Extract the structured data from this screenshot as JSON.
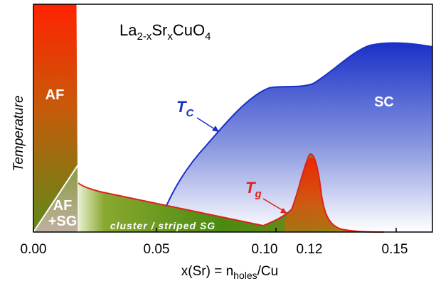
{
  "title": {
    "base1": "La",
    "sub1": "2-x",
    "base2": "Sr",
    "sub2": "x",
    "base3": "CuO",
    "sub3": "4"
  },
  "axes": {
    "ylabel": "Temperature",
    "xlabel": {
      "pre": "x(Sr) = n",
      "sub": "holes",
      "post": "/Cu"
    },
    "xticks": [
      {
        "label": "0.00",
        "x": 0.0
      },
      {
        "label": "0.05",
        "x": 0.05
      },
      {
        "label": "0.10",
        "x": 0.1
      },
      {
        "label": "0.12",
        "x": 0.12,
        "color": "#e0201a"
      },
      {
        "label": "0.15",
        "x": 0.15
      }
    ]
  },
  "regions": {
    "af": "AF",
    "af_sg_line1": "AF",
    "af_sg_line2": "+SG",
    "sc": "SC",
    "cluster": "cluster / striped SG"
  },
  "labels": {
    "tc": {
      "base": "T",
      "sub": "C",
      "color": "#1a30c8"
    },
    "tg": {
      "base": "T",
      "sub": "g",
      "color": "#e0201a"
    }
  },
  "colors": {
    "sc": "#1a30c8",
    "sg": "#e0201a",
    "af_red": "#ff2a00",
    "af_green": "#5a8a1e"
  }
}
